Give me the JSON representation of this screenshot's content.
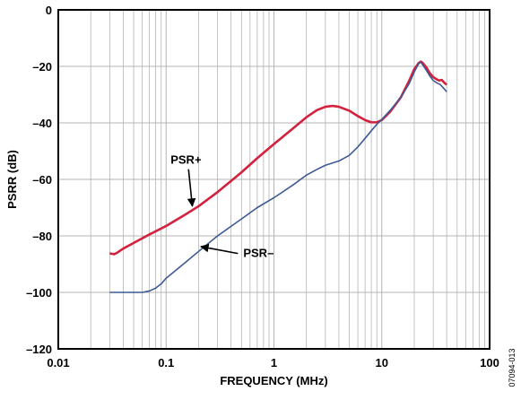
{
  "chart_data": {
    "type": "line",
    "xlabel": "FREQUENCY (MHz)",
    "ylabel": "PSRR (dB)",
    "x_scale": "log",
    "xlim": [
      0.01,
      100
    ],
    "ylim": [
      -120,
      0
    ],
    "x_ticks": [
      {
        "value": 0.01,
        "label": "0.01"
      },
      {
        "value": 0.1,
        "label": "0.1"
      },
      {
        "value": 1,
        "label": "1"
      },
      {
        "value": 10,
        "label": "10"
      },
      {
        "value": 100,
        "label": "100"
      }
    ],
    "y_ticks": [
      {
        "value": 0,
        "label": "0"
      },
      {
        "value": -20,
        "label": "–20"
      },
      {
        "value": -40,
        "label": "–40"
      },
      {
        "value": -60,
        "label": "–60"
      },
      {
        "value": -80,
        "label": "–80"
      },
      {
        "value": -100,
        "label": "–100"
      },
      {
        "value": -120,
        "label": "–120"
      }
    ],
    "grid": true,
    "series": [
      {
        "name": "PSR+",
        "color": "#d4213d",
        "points": [
          [
            0.03,
            -86.2
          ],
          [
            0.033,
            -86.5
          ],
          [
            0.035,
            -86.0
          ],
          [
            0.04,
            -84.5
          ],
          [
            0.05,
            -82.5
          ],
          [
            0.07,
            -79.5
          ],
          [
            0.1,
            -76.5
          ],
          [
            0.15,
            -72.5
          ],
          [
            0.2,
            -69.5
          ],
          [
            0.3,
            -64.5
          ],
          [
            0.5,
            -57.5
          ],
          [
            0.7,
            -52.5
          ],
          [
            1.0,
            -47.5
          ],
          [
            1.5,
            -42.0
          ],
          [
            2.0,
            -38.0
          ],
          [
            2.5,
            -35.5
          ],
          [
            3.0,
            -34.3
          ],
          [
            3.5,
            -34.0
          ],
          [
            4.0,
            -34.3
          ],
          [
            5.0,
            -35.7
          ],
          [
            6.0,
            -37.6
          ],
          [
            7.0,
            -39.0
          ],
          [
            8.0,
            -39.8
          ],
          [
            9.0,
            -39.8
          ],
          [
            10.0,
            -39.0
          ],
          [
            12.0,
            -36.0
          ],
          [
            15.0,
            -31.0
          ],
          [
            18.0,
            -25.0
          ],
          [
            20.0,
            -21.0
          ],
          [
            22.0,
            -18.8
          ],
          [
            23.0,
            -18.3
          ],
          [
            24.0,
            -18.8
          ],
          [
            26.0,
            -20.5
          ],
          [
            28.0,
            -22.5
          ],
          [
            30.0,
            -23.8
          ],
          [
            32.0,
            -24.5
          ],
          [
            34.0,
            -25.0
          ],
          [
            36.0,
            -24.8
          ],
          [
            38.0,
            -25.8
          ],
          [
            40.0,
            -26.5
          ]
        ]
      },
      {
        "name": "PSR–",
        "color": "#3d5a94",
        "points": [
          [
            0.03,
            -100
          ],
          [
            0.04,
            -100
          ],
          [
            0.05,
            -100
          ],
          [
            0.06,
            -100
          ],
          [
            0.07,
            -99.5
          ],
          [
            0.08,
            -98.5
          ],
          [
            0.09,
            -97.0
          ],
          [
            0.1,
            -95.0
          ],
          [
            0.15,
            -89.5
          ],
          [
            0.2,
            -85.5
          ],
          [
            0.3,
            -80.0
          ],
          [
            0.5,
            -74.0
          ],
          [
            0.7,
            -70.0
          ],
          [
            1.0,
            -66.5
          ],
          [
            1.5,
            -62.0
          ],
          [
            2.0,
            -58.5
          ],
          [
            2.5,
            -56.5
          ],
          [
            3.0,
            -55.0
          ],
          [
            4.0,
            -53.5
          ],
          [
            5.0,
            -51.5
          ],
          [
            6.0,
            -48.5
          ],
          [
            7.0,
            -45.5
          ],
          [
            8.0,
            -42.8
          ],
          [
            9.0,
            -40.5
          ],
          [
            10.0,
            -38.8
          ],
          [
            12.0,
            -35.5
          ],
          [
            15.0,
            -31.0
          ],
          [
            18.0,
            -26.0
          ],
          [
            20.0,
            -22.0
          ],
          [
            22.0,
            -19.0
          ],
          [
            23.0,
            -18.5
          ],
          [
            24.0,
            -19.5
          ],
          [
            26.0,
            -21.5
          ],
          [
            28.0,
            -23.5
          ],
          [
            30.0,
            -25.0
          ],
          [
            33.0,
            -26.0
          ],
          [
            35.0,
            -26.5
          ],
          [
            38.0,
            -28.0
          ],
          [
            40.0,
            -29.0
          ]
        ]
      }
    ],
    "annotations": [
      {
        "label": "PSR+",
        "x": 0.175,
        "y": -69.5,
        "text_x": 0.11,
        "text_y": -54.5
      },
      {
        "label": "PSR–",
        "x": 0.21,
        "y": -83.8,
        "text_x": 0.52,
        "text_y": -87.5
      }
    ],
    "figure_id": "07094-013"
  }
}
